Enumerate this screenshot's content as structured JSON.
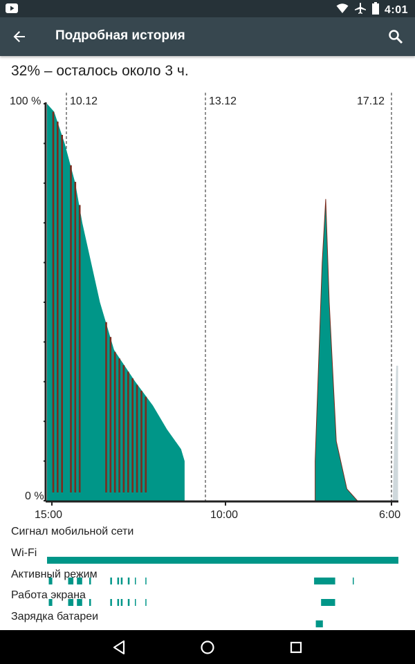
{
  "status_bar": {
    "time": "4:01",
    "icons": [
      "youtube-notification-icon",
      "wifi-icon",
      "airplane-mode-icon",
      "battery-icon"
    ]
  },
  "app_bar": {
    "title": "Подробная история",
    "back_icon": "arrow-back-icon",
    "search_icon": "search-icon"
  },
  "summary": "32% – осталось около 3 ч.",
  "chart_data": {
    "type": "area",
    "y_labels": [
      "100 %",
      "0 %"
    ],
    "ylim": [
      0,
      100
    ],
    "date_markers": [
      "10.12",
      "13.12",
      "17.12"
    ],
    "x_tick_labels": [
      "15:00",
      "10:00",
      "6:00"
    ],
    "series": [
      {
        "values": [
          [
            0,
            100
          ],
          [
            2,
            98
          ],
          [
            5,
            90
          ],
          [
            8,
            80
          ],
          [
            10,
            70
          ],
          [
            15,
            50
          ],
          [
            19,
            38
          ],
          [
            25,
            30
          ],
          [
            30,
            24
          ],
          [
            34,
            18
          ],
          [
            38,
            13
          ],
          [
            39,
            10
          ],
          [
            39,
            0
          ]
        ]
      },
      {
        "values": [
          [
            0,
            0
          ],
          [
            76,
            0
          ],
          [
            76,
            10
          ],
          [
            78,
            60
          ],
          [
            79,
            76
          ],
          [
            80,
            50
          ],
          [
            82,
            15
          ],
          [
            85,
            3
          ],
          [
            88,
            0
          ]
        ]
      },
      {
        "values": [
          [
            98,
            0
          ],
          [
            99,
            34
          ],
          [
            99.5,
            34
          ],
          [
            99.5,
            0
          ]
        ]
      }
    ],
    "colors": {
      "battery_fill": "#009688",
      "charging_spikes": "#7b2b1d",
      "projection": "#cfd8dc",
      "axis": "#212121"
    },
    "grid": false
  },
  "tracks": [
    {
      "label": "Сигнал мобильной сети",
      "segments": []
    },
    {
      "label": "Wi-Fi",
      "segments": [
        [
          0,
          100
        ]
      ]
    },
    {
      "label": "Активный режим",
      "segments": [
        [
          0.5,
          1.5
        ],
        [
          6,
          7.5
        ],
        [
          8.5,
          10
        ],
        [
          12,
          12.5
        ],
        [
          18,
          18.5
        ],
        [
          20,
          20.5
        ],
        [
          21,
          21.5
        ],
        [
          23,
          23.5
        ],
        [
          25,
          25.3
        ],
        [
          28,
          28.3
        ],
        [
          76,
          82
        ],
        [
          87,
          87.3
        ]
      ]
    },
    {
      "label": "Работа экрана",
      "segments": [
        [
          0.5,
          1.5
        ],
        [
          6,
          7.5
        ],
        [
          8.5,
          10
        ],
        [
          12,
          12.5
        ],
        [
          18,
          18.5
        ],
        [
          20,
          20.5
        ],
        [
          21,
          21.5
        ],
        [
          23,
          23.5
        ],
        [
          25,
          25.3
        ],
        [
          28,
          28.3
        ],
        [
          78,
          82
        ]
      ]
    },
    {
      "label": "Зарядка батареи",
      "segments": [
        [
          76.5,
          78.5
        ]
      ]
    }
  ],
  "nav_bar": {
    "icons": [
      "back-triangle-icon",
      "home-circle-icon",
      "recents-square-icon"
    ]
  }
}
